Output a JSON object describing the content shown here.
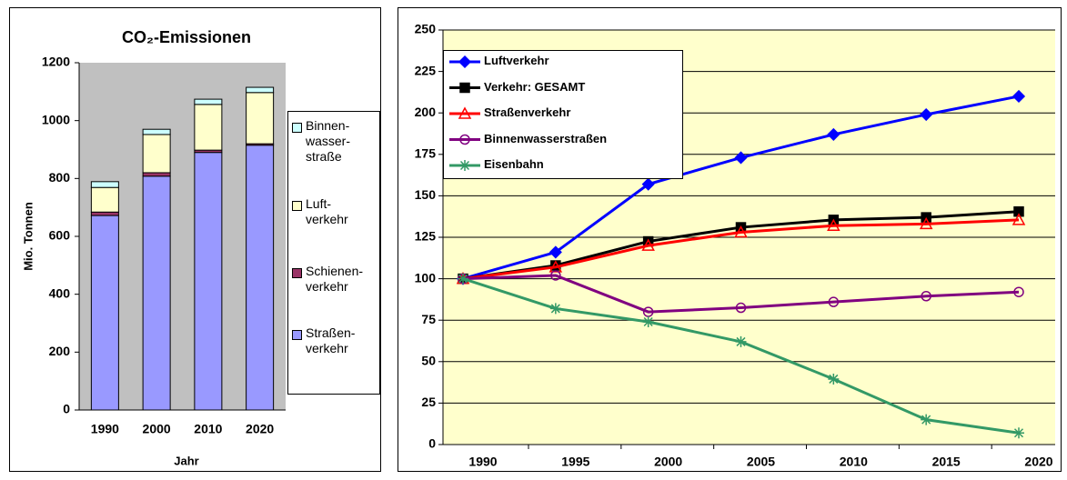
{
  "chart_data": [
    {
      "type": "stacked-bar",
      "title": "CO₂-Emissionen",
      "y_label": "Mio. Tonnen",
      "x_label": "Jahr",
      "categories": [
        "1990",
        "2000",
        "2010",
        "2020"
      ],
      "series": [
        {
          "name": "Straßen-\nverkehr",
          "color": "#9999ff",
          "values": [
            672,
            808,
            890,
            915
          ]
        },
        {
          "name": "Schienen-\nverkehr",
          "color": "#993366",
          "values": [
            12,
            12,
            8,
            5
          ]
        },
        {
          "name": "Luft-\nverkehr",
          "color": "#ffffcc",
          "values": [
            85,
            132,
            158,
            177
          ]
        },
        {
          "name": "Binnen-\nwasser-\nstraße",
          "color": "#ccffff",
          "values": [
            20,
            18,
            18,
            18
          ]
        }
      ],
      "ylim": [
        0,
        1200
      ],
      "yticks": [
        0,
        200,
        400,
        600,
        800,
        1000,
        1200
      ],
      "grid": false,
      "background": "#c0c0c0"
    },
    {
      "type": "line",
      "categories": [
        "1990",
        "1995",
        "2000",
        "2005",
        "2010",
        "2015",
        "2020"
      ],
      "series": [
        {
          "name": "Luftverkehr",
          "color": "#0000ff",
          "marker": "diamond",
          "values": [
            100,
            116,
            157,
            173,
            187,
            199,
            210
          ]
        },
        {
          "name": "Verkehr: GESAMT",
          "color": "#000000",
          "marker": "square",
          "values": [
            100,
            108,
            122.5,
            131,
            135.5,
            137,
            140.5
          ]
        },
        {
          "name": "Straßenverkehr",
          "color": "#ff0000",
          "marker": "triangle",
          "values": [
            100,
            107,
            120,
            128,
            132,
            133,
            135.5
          ]
        },
        {
          "name": "Binnenwasserstraßen",
          "color": "#800080",
          "marker": "circle",
          "values": [
            100,
            102,
            80,
            82.5,
            86,
            89.5,
            92
          ]
        },
        {
          "name": "Eisenbahn",
          "color": "#339966",
          "marker": "star",
          "values": [
            100,
            82,
            74,
            62,
            39.5,
            15,
            7
          ]
        }
      ],
      "ylim": [
        0,
        250
      ],
      "yticks": [
        0,
        25,
        50,
        75,
        100,
        125,
        150,
        175,
        200,
        225,
        250
      ],
      "grid": true,
      "background": "#ffffcc"
    }
  ]
}
